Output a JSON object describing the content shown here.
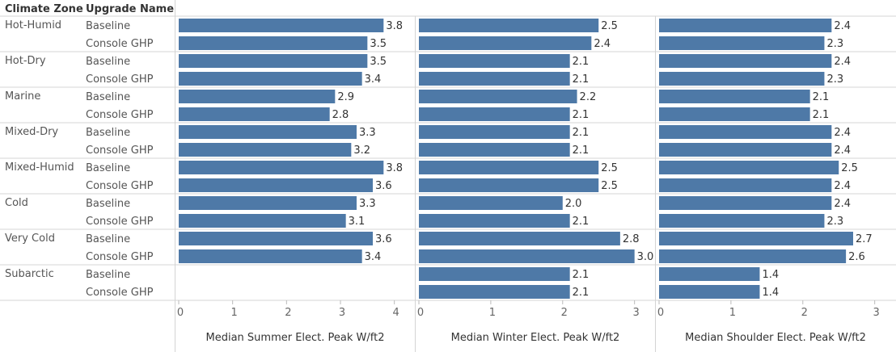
{
  "header": {
    "col1": "Climate Zone",
    "col2": "Upgrade Name"
  },
  "chart_data": {
    "type": "bar",
    "orientation": "horizontal",
    "bar_color": "#4e79a7",
    "zones": [
      "Hot-Humid",
      "Hot-Dry",
      "Marine",
      "Mixed-Dry",
      "Mixed-Humid",
      "Cold",
      "Very Cold",
      "Subarctic"
    ],
    "upgrades": [
      "Baseline",
      "Console GHP"
    ],
    "panels": [
      {
        "xlabel": "Median Summer Elect. Peak W/ft2",
        "xlim": [
          0,
          4.2
        ],
        "ticks": [
          "0",
          "1",
          "2",
          "3",
          "4"
        ],
        "values": [
          [
            3.8,
            3.5
          ],
          [
            3.5,
            3.4
          ],
          [
            2.9,
            2.8
          ],
          [
            3.3,
            3.2
          ],
          [
            3.8,
            3.6
          ],
          [
            3.3,
            3.1
          ],
          [
            3.6,
            3.4
          ],
          [
            null,
            null
          ]
        ],
        "labels": [
          [
            "3.8",
            "3.5"
          ],
          [
            "3.5",
            "3.4"
          ],
          [
            "2.9",
            "2.8"
          ],
          [
            "3.3",
            "3.2"
          ],
          [
            "3.8",
            "3.6"
          ],
          [
            "3.3",
            "3.1"
          ],
          [
            "3.6",
            "3.4"
          ],
          [
            "",
            ""
          ]
        ]
      },
      {
        "xlabel": "Median Winter Elect. Peak W/ft2",
        "xlim": [
          0,
          3.15
        ],
        "ticks": [
          "0",
          "1",
          "2",
          "3"
        ],
        "values": [
          [
            2.5,
            2.4
          ],
          [
            2.1,
            2.1
          ],
          [
            2.2,
            2.1
          ],
          [
            2.1,
            2.1
          ],
          [
            2.5,
            2.5
          ],
          [
            2.0,
            2.1
          ],
          [
            2.8,
            3.0
          ],
          [
            2.1,
            2.1
          ]
        ],
        "labels": [
          [
            "2.5",
            "2.4"
          ],
          [
            "2.1",
            "2.1"
          ],
          [
            "2.2",
            "2.1"
          ],
          [
            "2.1",
            "2.1"
          ],
          [
            "2.5",
            "2.5"
          ],
          [
            "2.0",
            "2.1"
          ],
          [
            "2.8",
            "3.0"
          ],
          [
            "2.1",
            "2.1"
          ]
        ]
      },
      {
        "xlabel": "Median Shoulder Elect. Peak W/ft2",
        "xlim": [
          0,
          3.15
        ],
        "ticks": [
          "0",
          "1",
          "2",
          "3"
        ],
        "values": [
          [
            2.4,
            2.3
          ],
          [
            2.4,
            2.3
          ],
          [
            2.1,
            2.1
          ],
          [
            2.4,
            2.4
          ],
          [
            2.5,
            2.4
          ],
          [
            2.4,
            2.3
          ],
          [
            2.7,
            2.6
          ],
          [
            1.4,
            1.4
          ]
        ],
        "labels": [
          [
            "2.4",
            "2.3"
          ],
          [
            "2.4",
            "2.3"
          ],
          [
            "2.1",
            "2.1"
          ],
          [
            "2.4",
            "2.4"
          ],
          [
            "2.5",
            "2.4"
          ],
          [
            "2.4",
            "2.3"
          ],
          [
            "2.7",
            "2.6"
          ],
          [
            "1.4",
            "1.4"
          ]
        ]
      }
    ]
  }
}
